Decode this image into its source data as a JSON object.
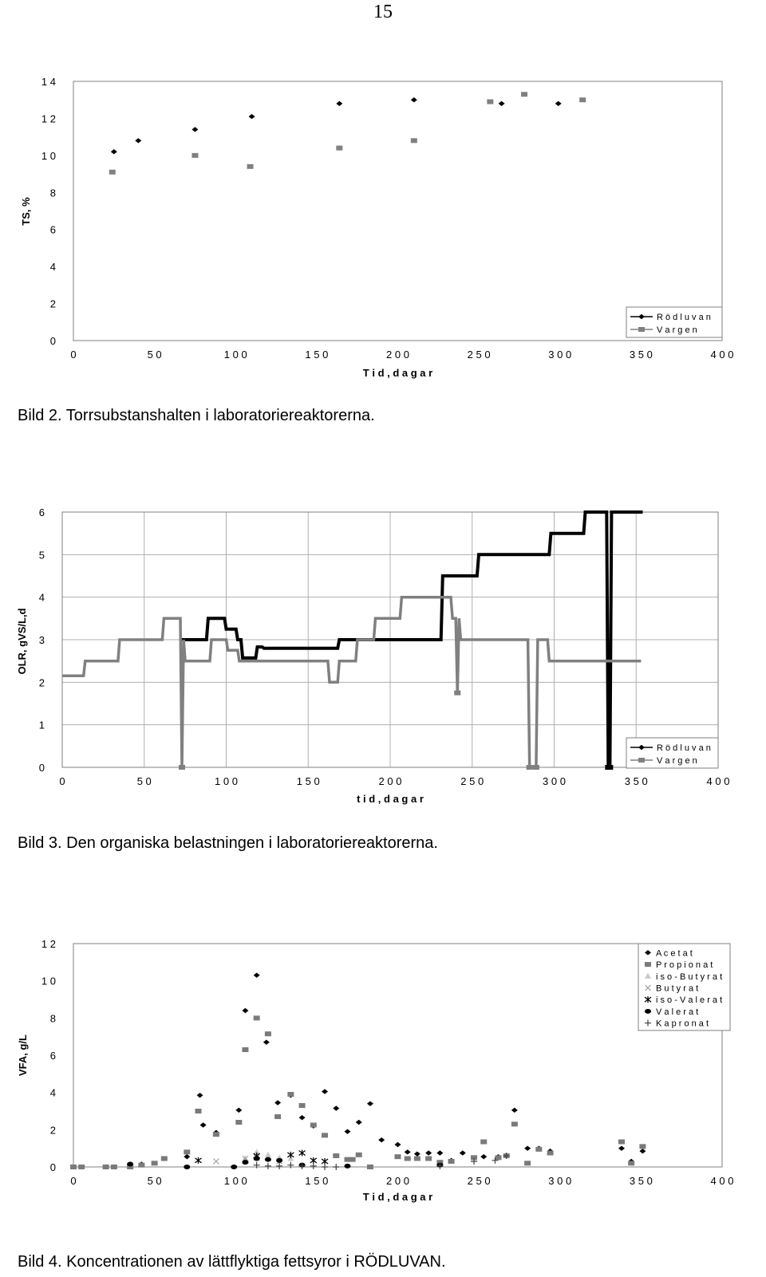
{
  "page": {
    "number": "15"
  },
  "captions": {
    "bild2": "Bild 2. Torrsubstanshalten i laboratoriereaktorerna.",
    "bild3": "Bild 3. Den organiska belastningen i laboratoriereaktorerna.",
    "bild4": "Bild 4. Koncentrationen av lättflyktiga fettsyror i RÖDLUVAN."
  },
  "colors": {
    "rodluvan": "#000000",
    "vargen": "#808080",
    "grid": "#b0b0b0"
  },
  "chart_data": [
    {
      "id": "ts",
      "type": "scatter",
      "xlabel": "T i d , d a g a r",
      "ylabel": "TS, %",
      "xlim": [
        0,
        400
      ],
      "ylim": [
        0,
        14
      ],
      "x_ticks": [
        0,
        50,
        100,
        150,
        200,
        250,
        300,
        350,
        400
      ],
      "x_tick_labels": [
        "0",
        "5 0",
        "1 0 0",
        "1 5 0",
        "2 0 0",
        "2 5 0",
        "3 0 0",
        "3 5 0",
        "4 0 0"
      ],
      "y_ticks": [
        0,
        2,
        4,
        6,
        8,
        10,
        12,
        14
      ],
      "y_tick_labels": [
        "0",
        "2",
        "4",
        "6",
        "8",
        "1 0",
        "1 2",
        "1 4"
      ],
      "grid": "none",
      "legend": "bottom-right",
      "series": [
        {
          "name": "R ö d l u v a n",
          "marker": "diamond",
          "x": [
            25,
            40,
            75,
            110,
            164,
            210,
            264,
            299
          ],
          "y": [
            10.2,
            10.8,
            11.4,
            12.1,
            12.8,
            13.0,
            12.8,
            12.8
          ]
        },
        {
          "name": "V a r g e n",
          "marker": "square",
          "x": [
            24,
            75,
            109,
            164,
            210,
            257,
            278,
            314
          ],
          "y": [
            9.1,
            10.0,
            9.4,
            10.4,
            10.8,
            12.9,
            13.3,
            13.0
          ]
        }
      ]
    },
    {
      "id": "olr",
      "type": "line",
      "xlabel": "t i d , d a g a r",
      "ylabel": "OLR, gVS/L,d",
      "xlim": [
        0,
        400
      ],
      "ylim": [
        0,
        6
      ],
      "x_ticks": [
        0,
        50,
        100,
        150,
        200,
        250,
        300,
        350,
        400
      ],
      "x_tick_labels": [
        "0",
        "5 0",
        "1 0 0",
        "1 5 0",
        "2 0 0",
        "2 5 0",
        "3 0 0",
        "3 5 0",
        "4 0 0"
      ],
      "y_ticks": [
        0,
        1,
        2,
        3,
        4,
        5,
        6
      ],
      "y_tick_labels": [
        "0",
        "1",
        "2",
        "3",
        "4",
        "5",
        "6"
      ],
      "grid": "both",
      "legend": "bottom-right",
      "series": [
        {
          "name": "R ö d l u v a n",
          "x": [
            72,
            88,
            89,
            99,
            100,
            106,
            107,
            109,
            110,
            114,
            115,
            118,
            119,
            122,
            123,
            127,
            128,
            168,
            169,
            175,
            176,
            231,
            232,
            253,
            254,
            297,
            298,
            318,
            319,
            332,
            333,
            334,
            335,
            354
          ],
          "y": [
            3.0,
            3.0,
            3.5,
            3.5,
            3.25,
            3.25,
            3.0,
            3.0,
            2.57,
            2.57,
            2.57,
            2.57,
            2.83,
            2.83,
            2.8,
            2.8,
            2.8,
            2.8,
            3.0,
            3.0,
            3.0,
            3.0,
            4.5,
            4.5,
            5.0,
            5.0,
            5.5,
            5.5,
            6.0,
            6.0,
            0.0,
            0.0,
            6.0,
            6.0
          ]
        },
        {
          "name": "V a r g e n",
          "x": [
            0,
            13,
            14,
            34,
            35,
            61,
            62,
            72,
            73,
            74,
            75,
            90,
            91,
            100,
            101,
            107,
            108,
            162,
            163,
            168,
            169,
            179,
            180,
            190,
            191,
            206,
            207,
            237,
            238,
            240,
            241,
            242,
            243,
            284,
            285,
            289,
            290,
            296,
            297,
            353
          ],
          "y": [
            2.15,
            2.15,
            2.5,
            2.5,
            3.0,
            3.0,
            3.5,
            3.5,
            0.0,
            3.0,
            2.5,
            2.5,
            3.0,
            3.0,
            2.75,
            2.75,
            2.5,
            2.5,
            2.0,
            2.0,
            2.5,
            2.5,
            3.0,
            3.0,
            3.5,
            3.5,
            4.0,
            4.0,
            3.5,
            3.5,
            1.75,
            3.5,
            3.0,
            3.0,
            0.0,
            0.0,
            3.0,
            3.0,
            2.5,
            2.5
          ]
        }
      ]
    },
    {
      "id": "vfa",
      "type": "scatter",
      "xlabel": "T i d , d a g a r",
      "ylabel": "VFA, g/L",
      "xlim": [
        0,
        400
      ],
      "ylim": [
        0,
        12
      ],
      "x_ticks": [
        0,
        50,
        100,
        150,
        200,
        250,
        300,
        350,
        400
      ],
      "x_tick_labels": [
        "0",
        "5 0",
        "1 0 0",
        "1 5 0",
        "2 0 0",
        "2 5 0",
        "3 0 0",
        "3 5 0",
        "4 0 0"
      ],
      "y_ticks": [
        0,
        2,
        4,
        6,
        8,
        10,
        12
      ],
      "y_tick_labels": [
        "0",
        "2",
        "4",
        "6",
        "8",
        "1 0",
        "1 2"
      ],
      "grid": "none",
      "legend": "top-right",
      "series": [
        {
          "name": "A c e t a t",
          "marker": "diamond",
          "x": [
            0,
            5,
            20,
            25,
            35,
            42,
            56,
            70,
            78,
            80,
            88,
            102,
            106,
            113,
            119,
            126,
            134,
            141,
            148,
            155,
            162,
            169,
            176,
            183,
            190,
            200,
            206,
            212,
            219,
            226,
            233,
            240,
            247,
            253,
            262,
            267,
            272,
            280,
            287,
            294,
            338,
            344,
            351
          ],
          "y": [
            0.0,
            0.0,
            0.0,
            0.0,
            0.15,
            0.15,
            0.45,
            0.55,
            3.85,
            2.25,
            1.85,
            3.05,
            8.4,
            10.3,
            6.7,
            3.45,
            3.85,
            2.65,
            2.2,
            4.05,
            3.15,
            1.9,
            2.4,
            3.4,
            1.45,
            1.2,
            0.8,
            0.7,
            0.75,
            0.75,
            0.35,
            0.75,
            0.5,
            0.55,
            0.55,
            0.6,
            3.05,
            1.0,
            1.0,
            0.85,
            1.0,
            0.3,
            0.85
          ]
        },
        {
          "name": "P r o p i o n a t",
          "marker": "square",
          "x": [
            0,
            5,
            20,
            25,
            35,
            42,
            50,
            56,
            70,
            77,
            88,
            102,
            106,
            113,
            120,
            126,
            134,
            141,
            148,
            155,
            162,
            169,
            172,
            176,
            183,
            200,
            206,
            212,
            219,
            226,
            233,
            247,
            253,
            262,
            267,
            272,
            280,
            287,
            294,
            338,
            344,
            351
          ],
          "y": [
            0.0,
            0.0,
            0.0,
            0.0,
            0.0,
            0.1,
            0.2,
            0.45,
            0.8,
            3.0,
            1.75,
            2.4,
            6.3,
            8.0,
            7.15,
            2.7,
            3.9,
            3.3,
            2.25,
            1.7,
            0.6,
            0.4,
            0.4,
            0.65,
            0.0,
            0.55,
            0.45,
            0.45,
            0.45,
            0.25,
            0.3,
            0.5,
            1.35,
            0.5,
            0.6,
            2.3,
            0.2,
            0.95,
            0.75,
            1.35,
            0.2,
            1.1
          ]
        },
        {
          "name": "i s o - B u t y r a t",
          "marker": "triangle",
          "x": [
            106,
            113,
            120,
            127,
            134
          ],
          "y": [
            0.45,
            0.8,
            0.65,
            0.5,
            0.45
          ]
        },
        {
          "name": "B u t y r a t",
          "marker": "x",
          "x": [
            88,
            106,
            113,
            127
          ],
          "y": [
            0.3,
            0.45,
            0.5,
            0.3
          ]
        },
        {
          "name": "i s o - V a l e r a t",
          "marker": "asterisk",
          "x": [
            77,
            113,
            134,
            141,
            148,
            155
          ],
          "y": [
            0.35,
            0.6,
            0.65,
            0.75,
            0.35,
            0.3
          ]
        },
        {
          "name": "V a l e r a t",
          "marker": "circle",
          "x": [
            35,
            70,
            99,
            106,
            113,
            120,
            127,
            141,
            169,
            226
          ],
          "y": [
            0.15,
            0.0,
            0.0,
            0.25,
            0.45,
            0.4,
            0.35,
            0.1,
            0.05,
            0.1
          ]
        },
        {
          "name": "K a p r o n a t",
          "marker": "plus",
          "x": [
            113,
            120,
            127,
            134,
            141,
            148,
            155,
            162,
            226,
            247,
            260,
            267
          ],
          "y": [
            0.1,
            0.05,
            0.05,
            0.1,
            0.05,
            0.05,
            0.0,
            0.0,
            0.05,
            0.3,
            0.35,
            0.6
          ]
        }
      ]
    }
  ]
}
